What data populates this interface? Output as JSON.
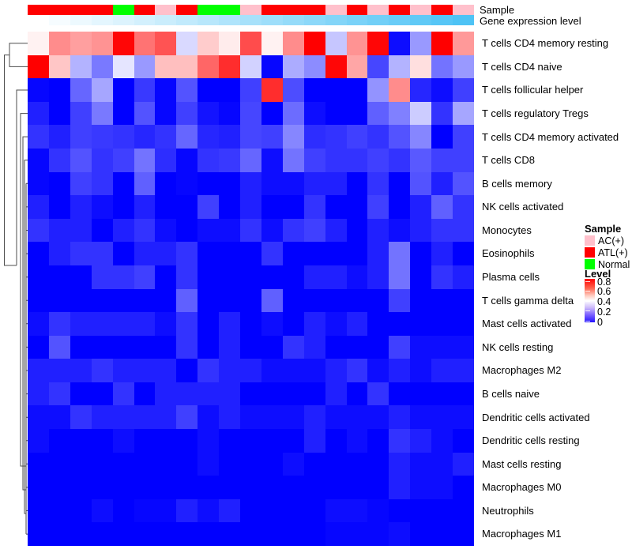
{
  "annotation_tracks": {
    "sample_label": "Sample",
    "gene_label": "Gene expression level",
    "sample_colors": {
      "AC(+)": "#FFC0CB",
      "ATL(+)": "#FF0000",
      "Normal": "#00FF00"
    },
    "gene_gradient": {
      "low": "#FFFFFF",
      "high": "#4EC3F5"
    }
  },
  "chart_data": {
    "type": "heatmap",
    "title": "",
    "columns": 21,
    "rows": [
      "T cells CD4 memory resting",
      "T cells CD4 naive",
      "T cells follicular helper",
      "T cells regulatory  Tregs",
      "T cells CD4 memory activated",
      "T cells CD8",
      "B cells memory",
      "NK cells activated",
      "Monocytes",
      "Eosinophils",
      "Plasma cells",
      "T cells gamma delta",
      "Mast cells activated",
      "NK cells resting",
      "Macrophages M2",
      "B cells naive",
      "Dendritic cells activated",
      "Dendritic cells resting",
      "Mast cells resting",
      "Macrophages M0",
      "Neutrophils",
      "Macrophages M1"
    ],
    "colormap": {
      "low": "#0000FF",
      "mid": "#FFFFFF",
      "high": "#FF0000",
      "domain": [
        0,
        0.4,
        0.8
      ]
    },
    "column_annotation_sample": [
      "ATL(+)",
      "ATL(+)",
      "ATL(+)",
      "ATL(+)",
      "Normal",
      "ATL(+)",
      "AC(+)",
      "ATL(+)",
      "Normal",
      "Normal",
      "AC(+)",
      "ATL(+)",
      "ATL(+)",
      "ATL(+)",
      "AC(+)",
      "ATL(+)",
      "AC(+)",
      "ATL(+)",
      "AC(+)",
      "ATL(+)",
      "AC(+)"
    ],
    "column_annotation_gene_level": [
      0,
      0.05,
      0.1,
      0.15,
      0.2,
      0.25,
      0.3,
      0.35,
      0.4,
      0.45,
      0.5,
      0.55,
      0.6,
      0.65,
      0.7,
      0.75,
      0.8,
      0.85,
      0.9,
      0.95,
      1
    ],
    "values": [
      [
        0.42,
        0.58,
        0.55,
        0.57,
        0.79,
        0.62,
        0.67,
        0.34,
        0.48,
        0.43,
        0.68,
        0.42,
        0.58,
        0.8,
        0.31,
        0.57,
        0.79,
        0.02,
        0.24,
        0.8,
        0.56
      ],
      [
        0.8,
        0.49,
        0.28,
        0.19,
        0.36,
        0.24,
        0.5,
        0.5,
        0.64,
        0.73,
        0.33,
        0.01,
        0.27,
        0.22,
        0.79,
        0.54,
        0.11,
        0.28,
        0.45,
        0.18,
        0.24
      ],
      [
        0.01,
        0.0,
        0.16,
        0.26,
        0.0,
        0.09,
        0.01,
        0.13,
        0.0,
        0.0,
        0.1,
        0.73,
        0.12,
        0.0,
        0.0,
        0.0,
        0.23,
        0.58,
        0.06,
        0.02,
        0.1
      ],
      [
        0.05,
        0.0,
        0.1,
        0.19,
        0.0,
        0.13,
        0.01,
        0.1,
        0.03,
        0.01,
        0.11,
        0.0,
        0.17,
        0.02,
        0.0,
        0.0,
        0.15,
        0.2,
        0.32,
        0.08,
        0.26
      ],
      [
        0.08,
        0.05,
        0.1,
        0.09,
        0.08,
        0.06,
        0.08,
        0.16,
        0.06,
        0.05,
        0.11,
        0.1,
        0.21,
        0.07,
        0.08,
        0.1,
        0.08,
        0.13,
        0.21,
        0.0,
        0.1
      ],
      [
        0.01,
        0.08,
        0.13,
        0.08,
        0.1,
        0.18,
        0.07,
        0.01,
        0.08,
        0.09,
        0.16,
        0.02,
        0.18,
        0.1,
        0.08,
        0.08,
        0.1,
        0.08,
        0.14,
        0.1,
        0.1
      ],
      [
        0.01,
        0.0,
        0.1,
        0.08,
        0.0,
        0.15,
        0.0,
        0.01,
        0.0,
        0.0,
        0.05,
        0.02,
        0.02,
        0.05,
        0.05,
        0.0,
        0.08,
        0.0,
        0.13,
        0.05,
        0.13
      ],
      [
        0.05,
        0.0,
        0.05,
        0.02,
        0.0,
        0.05,
        0.0,
        0.0,
        0.1,
        0.0,
        0.05,
        0.0,
        0.0,
        0.08,
        0.0,
        0.0,
        0.1,
        0.0,
        0.05,
        0.15,
        0.08
      ],
      [
        0.08,
        0.05,
        0.05,
        0.0,
        0.05,
        0.08,
        0.02,
        0.0,
        0.02,
        0.02,
        0.08,
        0.02,
        0.08,
        0.1,
        0.05,
        0.0,
        0.05,
        0.02,
        0.05,
        0.08,
        0.08
      ],
      [
        0.0,
        0.05,
        0.08,
        0.08,
        0.0,
        0.05,
        0.05,
        0.08,
        0.0,
        0.0,
        0.0,
        0.08,
        0.0,
        0.0,
        0.0,
        0.0,
        0.05,
        0.18,
        0.0,
        0.05,
        0.0
      ],
      [
        0.0,
        0.0,
        0.0,
        0.08,
        0.08,
        0.1,
        0.0,
        0.08,
        0.0,
        0.0,
        0.0,
        0.0,
        0.0,
        0.05,
        0.05,
        0.02,
        0.05,
        0.18,
        0.0,
        0.08,
        0.05
      ],
      [
        0.0,
        0.0,
        0.0,
        0.0,
        0.0,
        0.0,
        0.0,
        0.15,
        0.0,
        0.0,
        0.0,
        0.15,
        0.0,
        0.0,
        0.0,
        0.0,
        0.0,
        0.1,
        0.0,
        0.0,
        0.0
      ],
      [
        0.02,
        0.08,
        0.05,
        0.05,
        0.05,
        0.05,
        0.02,
        0.08,
        0.0,
        0.05,
        0.0,
        0.02,
        0.0,
        0.05,
        0.02,
        0.05,
        0.0,
        0.0,
        0.0,
        0.0,
        0.0
      ],
      [
        0.0,
        0.13,
        0.0,
        0.0,
        0.0,
        0.0,
        0.0,
        0.08,
        0.0,
        0.05,
        0.0,
        0.0,
        0.08,
        0.05,
        0.0,
        0.0,
        0.0,
        0.1,
        0.02,
        0.02,
        0.02
      ],
      [
        0.05,
        0.05,
        0.05,
        0.08,
        0.05,
        0.05,
        0.05,
        0.0,
        0.08,
        0.05,
        0.05,
        0.02,
        0.02,
        0.02,
        0.05,
        0.08,
        0.02,
        0.05,
        0.02,
        0.05,
        0.05
      ],
      [
        0.05,
        0.08,
        0.0,
        0.0,
        0.08,
        0.0,
        0.05,
        0.05,
        0.05,
        0.05,
        0.0,
        0.0,
        0.0,
        0.0,
        0.05,
        0.0,
        0.08,
        0.0,
        0.0,
        0.0,
        0.0
      ],
      [
        0.02,
        0.02,
        0.08,
        0.05,
        0.05,
        0.05,
        0.05,
        0.1,
        0.02,
        0.05,
        0.02,
        0.02,
        0.02,
        0.05,
        0.02,
        0.02,
        0.02,
        0.05,
        0.02,
        0.02,
        0.02
      ],
      [
        0.02,
        0.0,
        0.0,
        0.0,
        0.02,
        0.0,
        0.0,
        0.0,
        0.02,
        0.0,
        0.0,
        0.0,
        0.0,
        0.05,
        0.0,
        0.02,
        0.0,
        0.08,
        0.05,
        0.02,
        0.0
      ],
      [
        0.0,
        0.0,
        0.0,
        0.0,
        0.0,
        0.0,
        0.0,
        0.0,
        0.02,
        0.0,
        0.0,
        0.0,
        0.02,
        0.0,
        0.0,
        0.0,
        0.0,
        0.05,
        0.02,
        0.02,
        0.05
      ],
      [
        0.0,
        0.0,
        0.0,
        0.0,
        0.0,
        0.0,
        0.0,
        0.0,
        0.0,
        0.0,
        0.0,
        0.0,
        0.0,
        0.0,
        0.0,
        0.0,
        0.0,
        0.05,
        0.02,
        0.02,
        0.0
      ],
      [
        0.0,
        0.0,
        0.0,
        0.02,
        0.0,
        0.01,
        0.01,
        0.05,
        0.02,
        0.05,
        0.0,
        0.0,
        0.0,
        0.0,
        0.02,
        0.02,
        0.01,
        0.0,
        0.0,
        0.0,
        0.0
      ],
      [
        0.0,
        0.0,
        0.0,
        0.0,
        0.0,
        0.0,
        0.0,
        0.0,
        0.0,
        0.0,
        0.0,
        0.0,
        0.0,
        0.0,
        0.01,
        0.01,
        0.01,
        0.02,
        0.0,
        0.0,
        0.0
      ]
    ]
  },
  "legend": {
    "sample_title": "Sample",
    "sample_items": [
      {
        "label": "AC(+)",
        "color": "#FFC0CB"
      },
      {
        "label": "ATL(+)",
        "color": "#FF0000"
      },
      {
        "label": "Normal",
        "color": "#00FF00"
      }
    ],
    "level_title": "Level",
    "level_ticks": [
      "0.8",
      "0.6",
      "0.4",
      "0.2",
      "0"
    ]
  }
}
